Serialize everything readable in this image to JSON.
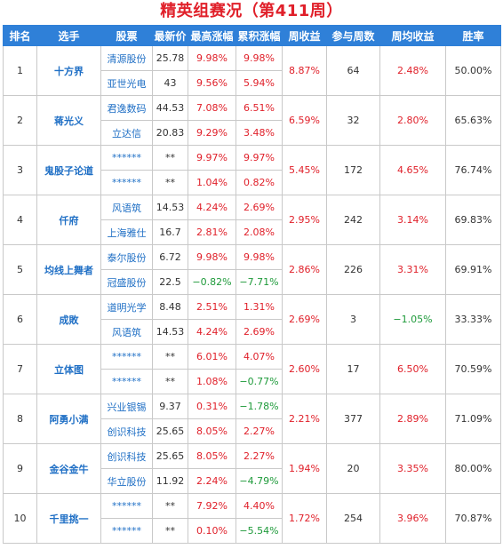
{
  "title": "精英组赛况（第411周）",
  "headers": [
    "排名",
    "选手",
    "股票",
    "最新价",
    "最高涨幅",
    "累积涨幅",
    "周收益",
    "参与周数",
    "周均收益",
    "胜率"
  ],
  "rows": [
    {
      "rank": "1",
      "player": "十方界",
      "week_return": "8.87%",
      "weeks": "64",
      "avg_return": "2.48%",
      "win_rate": "50.00%",
      "stocks": [
        {
          "name": "清源股份",
          "price": "25.78",
          "max_gain": "9.98%",
          "cum_gain": "9.98%"
        },
        {
          "name": "亚世光电",
          "price": "43",
          "max_gain": "9.56%",
          "cum_gain": "5.94%"
        }
      ]
    },
    {
      "rank": "2",
      "player": "蒋光义",
      "week_return": "6.59%",
      "weeks": "32",
      "avg_return": "2.80%",
      "win_rate": "65.63%",
      "stocks": [
        {
          "name": "君逸数码",
          "price": "44.53",
          "max_gain": "7.08%",
          "cum_gain": "6.51%"
        },
        {
          "name": "立达信",
          "price": "20.83",
          "max_gain": "9.29%",
          "cum_gain": "3.48%"
        }
      ]
    },
    {
      "rank": "3",
      "player": "鬼股子论道",
      "week_return": "5.45%",
      "weeks": "172",
      "avg_return": "4.65%",
      "win_rate": "76.74%",
      "stocks": [
        {
          "name": "******",
          "price": "**",
          "max_gain": "9.97%",
          "cum_gain": "9.97%"
        },
        {
          "name": "******",
          "price": "**",
          "max_gain": "1.04%",
          "cum_gain": "0.82%"
        }
      ]
    },
    {
      "rank": "4",
      "player": "仟府",
      "week_return": "2.95%",
      "weeks": "242",
      "avg_return": "3.14%",
      "win_rate": "69.83%",
      "stocks": [
        {
          "name": "风语筑",
          "price": "14.53",
          "max_gain": "4.24%",
          "cum_gain": "2.69%"
        },
        {
          "name": "上海雅仕",
          "price": "16.7",
          "max_gain": "2.81%",
          "cum_gain": "2.08%"
        }
      ]
    },
    {
      "rank": "5",
      "player": "均线上舞者",
      "week_return": "2.86%",
      "weeks": "226",
      "avg_return": "3.31%",
      "win_rate": "69.91%",
      "stocks": [
        {
          "name": "泰尔股份",
          "price": "6.72",
          "max_gain": "9.98%",
          "cum_gain": "9.98%"
        },
        {
          "name": "冠盛股份",
          "price": "22.5",
          "max_gain": "−0.82%",
          "cum_gain": "−7.71%"
        }
      ]
    },
    {
      "rank": "6",
      "player": "成敗",
      "week_return": "2.69%",
      "weeks": "3",
      "avg_return": "−1.05%",
      "win_rate": "33.33%",
      "stocks": [
        {
          "name": "道明光学",
          "price": "8.48",
          "max_gain": "2.51%",
          "cum_gain": "1.31%"
        },
        {
          "name": "风语筑",
          "price": "14.53",
          "max_gain": "4.24%",
          "cum_gain": "2.69%"
        }
      ]
    },
    {
      "rank": "7",
      "player": "立体图",
      "week_return": "2.60%",
      "weeks": "17",
      "avg_return": "6.50%",
      "win_rate": "70.59%",
      "stocks": [
        {
          "name": "******",
          "price": "**",
          "max_gain": "6.01%",
          "cum_gain": "4.07%"
        },
        {
          "name": "******",
          "price": "**",
          "max_gain": "1.08%",
          "cum_gain": "−0.77%"
        }
      ]
    },
    {
      "rank": "8",
      "player": "阿勇小满",
      "week_return": "2.21%",
      "weeks": "377",
      "avg_return": "2.89%",
      "win_rate": "71.09%",
      "stocks": [
        {
          "name": "兴业银锡",
          "price": "9.37",
          "max_gain": "0.31%",
          "cum_gain": "−1.78%"
        },
        {
          "name": "创识科技",
          "price": "25.65",
          "max_gain": "8.05%",
          "cum_gain": "2.27%"
        }
      ]
    },
    {
      "rank": "9",
      "player": "金谷金牛",
      "week_return": "1.94%",
      "weeks": "20",
      "avg_return": "3.35%",
      "win_rate": "80.00%",
      "stocks": [
        {
          "name": "创识科技",
          "price": "25.65",
          "max_gain": "8.05%",
          "cum_gain": "2.27%"
        },
        {
          "name": "华立股份",
          "price": "11.92",
          "max_gain": "2.24%",
          "cum_gain": "−4.79%"
        }
      ]
    },
    {
      "rank": "10",
      "player": "千里挑一",
      "week_return": "1.72%",
      "weeks": "254",
      "avg_return": "3.96%",
      "win_rate": "70.87%",
      "stocks": [
        {
          "name": "******",
          "price": "**",
          "max_gain": "7.92%",
          "cum_gain": "4.40%"
        },
        {
          "name": "******",
          "price": "**",
          "max_gain": "0.10%",
          "cum_gain": "−5.54%"
        }
      ]
    }
  ]
}
